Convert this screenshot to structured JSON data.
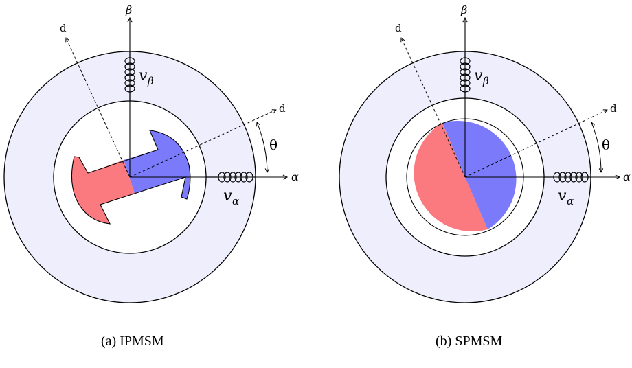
{
  "colors": {
    "stator": "#eeeefc",
    "north": "#fa7a80",
    "south": "#7a7afa",
    "stroke": "#000000"
  },
  "labels": {
    "alpha_axis": "α",
    "beta_axis": "β",
    "d_axis": "d",
    "theta": "θ",
    "v_symbol": "v",
    "v_alpha_sub": "α",
    "v_beta_sub": "β"
  },
  "panels": [
    {
      "caption": "(a) IPMSM",
      "rotor_type": "interior"
    },
    {
      "caption": "(b) SPMSM",
      "rotor_type": "surface"
    }
  ]
}
